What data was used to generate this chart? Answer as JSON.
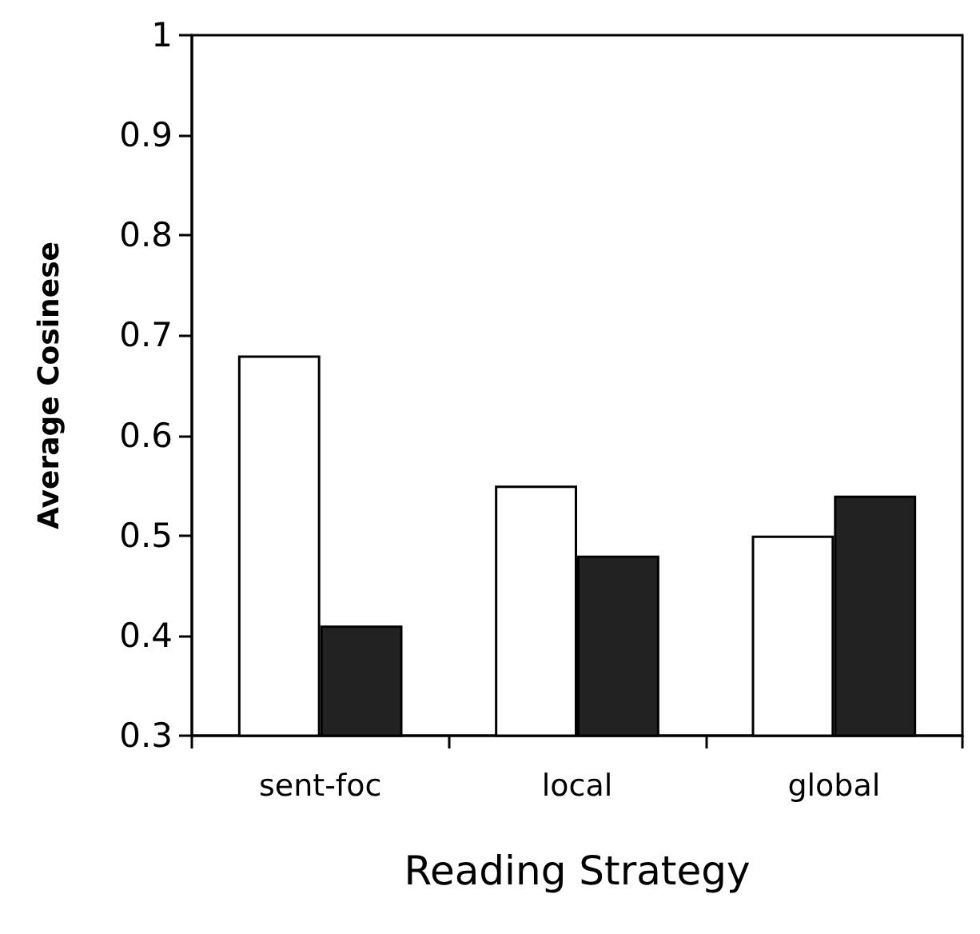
{
  "chart_data": {
    "type": "bar",
    "xlabel": "Reading Strategy",
    "ylabel": "Average Cosinese",
    "categories": [
      "sent-foc",
      "local",
      "global"
    ],
    "series": [
      {
        "color": "#ffffff",
        "values": [
          0.68,
          0.55,
          0.5
        ]
      },
      {
        "color": "#222222",
        "values": [
          0.41,
          0.48,
          0.54
        ]
      }
    ],
    "ylim": [
      0.3,
      1
    ],
    "yticks": [
      0.3,
      0.4,
      0.5,
      0.6,
      0.7,
      0.8,
      0.9,
      1
    ],
    "grid": false
  }
}
